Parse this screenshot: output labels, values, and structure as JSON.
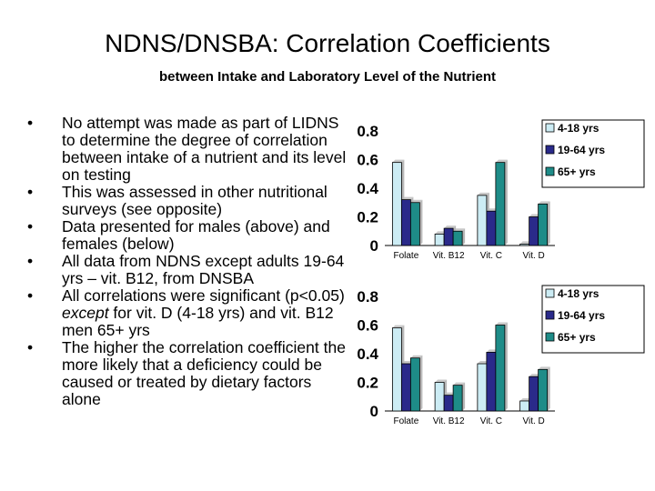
{
  "title": "NDNS/DNSBA: Correlation Coefficients",
  "subtitle": "between Intake and Laboratory Level of the Nutrient",
  "bullets": [
    {
      "parts": [
        {
          "t": "No attempt was made as part of LIDNS to determine the degree of correlation between intake of a nutrient and its level on testing"
        }
      ]
    },
    {
      "parts": [
        {
          "t": "This was assessed in other nutritional surveys (see opposite)"
        }
      ]
    },
    {
      "parts": [
        {
          "t": "Data presented for males (above) and females (below)"
        }
      ]
    },
    {
      "parts": [
        {
          "t": "All data from NDNS except adults 19-64 yrs – vit. B12, from DNSBA"
        }
      ]
    },
    {
      "parts": [
        {
          "t": "All correlations were significant (p<0.05) "
        },
        {
          "t": "except",
          "i": true
        },
        {
          "t": " for vit. D (4-18 yrs) and vit. B12 men 65+ yrs"
        }
      ]
    },
    {
      "parts": [
        {
          "t": "The higher the correlation coefficient the more likely that a deficiency could be caused or treated by dietary factors alone"
        }
      ]
    }
  ],
  "colors": {
    "4-18 yrs": "#ccecf4",
    "19-64 yrs": "#2a2a8a",
    "65+ yrs": "#1e8c88"
  },
  "chart_data": [
    {
      "type": "bar",
      "title": "",
      "xlabel": "",
      "ylabel": "",
      "ylim": [
        0,
        0.8
      ],
      "yticks": [
        "0",
        "0.2",
        "0.4",
        "0.6",
        "0.8"
      ],
      "categories": [
        "Folate",
        "Vit. B12",
        "Vit. C",
        "Vit. D"
      ],
      "series": [
        {
          "name": "4-18 yrs",
          "values": [
            0.58,
            0.08,
            0.35,
            0.01
          ]
        },
        {
          "name": "19-64 yrs",
          "values": [
            0.32,
            0.12,
            0.24,
            0.2
          ]
        },
        {
          "name": "65+ yrs",
          "values": [
            0.3,
            0.1,
            0.58,
            0.29
          ]
        }
      ],
      "legend": "top-right"
    },
    {
      "type": "bar",
      "title": "",
      "xlabel": "",
      "ylabel": "",
      "ylim": [
        0,
        0.8
      ],
      "yticks": [
        "0",
        "0.2",
        "0.4",
        "0.6",
        "0.8"
      ],
      "categories": [
        "Folate",
        "Vit. B12",
        "Vit. C",
        "Vit. D"
      ],
      "series": [
        {
          "name": "4-18 yrs",
          "values": [
            0.58,
            0.2,
            0.33,
            0.07
          ]
        },
        {
          "name": "19-64 yrs",
          "values": [
            0.33,
            0.11,
            0.41,
            0.24
          ]
        },
        {
          "name": "65+ yrs",
          "values": [
            0.37,
            0.18,
            0.6,
            0.29
          ]
        }
      ],
      "legend": "top-right"
    }
  ]
}
